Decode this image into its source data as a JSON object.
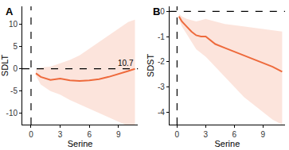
{
  "chart_data": [
    {
      "type": "line",
      "panel": "A",
      "x_label": "Serine",
      "y_label": "SDLT",
      "color": "#EE6A3C",
      "x": [
        0.5,
        1,
        2,
        3,
        4,
        5,
        6,
        7,
        8,
        9,
        10,
        10.7
      ],
      "values": [
        -1,
        -1.8,
        -2.5,
        -2.2,
        -2.6,
        -2.7,
        -2.6,
        -2.3,
        -1.8,
        -1.2,
        -0.5,
        0
      ],
      "lower": [
        -1.5,
        -3.5,
        -5,
        -5.8,
        -7,
        -8,
        -9,
        -10,
        -11,
        -12,
        -13,
        -13.5
      ],
      "upper": [
        -0.2,
        0.3,
        0.5,
        1.2,
        2,
        3,
        4.5,
        6,
        7.5,
        9,
        10.5,
        11
      ],
      "reference_lines": {
        "x": 0,
        "y": 0
      },
      "annotations": [
        {
          "text": "10.7",
          "x": 10.7,
          "y": 0
        }
      ],
      "xlim": [
        -0.9,
        11
      ],
      "ylim": [
        -12.5,
        14
      ],
      "xticks": [
        0,
        3,
        6,
        9
      ],
      "yticks": [
        -10,
        -5,
        0,
        5,
        10
      ]
    },
    {
      "type": "line",
      "panel": "B",
      "x_label": "Serine",
      "y_label": "SDST",
      "color": "#EE6A3C",
      "x": [
        0.2,
        0.5,
        1,
        1.5,
        2,
        2.5,
        3,
        3.5,
        4,
        5,
        6,
        7,
        8,
        9,
        10,
        11
      ],
      "values": [
        -0.2,
        -0.4,
        -0.6,
        -0.8,
        -0.95,
        -1.0,
        -1.0,
        -1.15,
        -1.3,
        -1.45,
        -1.6,
        -1.75,
        -1.9,
        -2.05,
        -2.2,
        -2.4
      ],
      "lower": [
        -0.3,
        -0.6,
        -0.9,
        -1.2,
        -1.5,
        -1.65,
        -1.8,
        -2.0,
        -2.2,
        -2.6,
        -3.0,
        -3.4,
        -3.7,
        -4.0,
        -4.3,
        -4.5
      ],
      "upper": [
        -0.1,
        -0.2,
        -0.3,
        -0.35,
        -0.4,
        -0.35,
        -0.3,
        -0.35,
        -0.4,
        -0.5,
        -0.55,
        -0.6,
        -0.65,
        -0.7,
        -0.75,
        -0.8
      ],
      "reference_lines": {
        "x": 0,
        "y": 0
      },
      "xlim": [
        -0.8,
        11.3
      ],
      "ylim": [
        -4.5,
        0.2
      ],
      "xticks": [
        0,
        3,
        6,
        9
      ],
      "yticks": [
        -4,
        -3,
        -2,
        -1,
        0
      ]
    }
  ]
}
